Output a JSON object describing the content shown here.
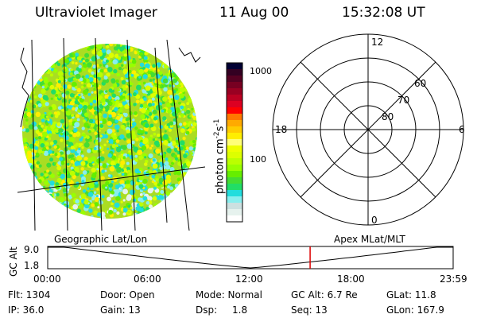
{
  "header": {
    "instrument": "Ultraviolet Imager",
    "date": "11 Aug 00",
    "time": "15:32:08 UT"
  },
  "colorbar": {
    "unit_label": "photon cm",
    "unit_sup1": "-2",
    "unit_mid": "s",
    "unit_sup2": "-1",
    "ticks": [
      "1000",
      "100"
    ],
    "colors": [
      "#000033",
      "#330022",
      "#550022",
      "#770022",
      "#990022",
      "#bb0022",
      "#dd0022",
      "#ff0000",
      "#ff7700",
      "#ffaa00",
      "#ffcc00",
      "#ffee00",
      "#ffff77",
      "#eeff00",
      "#ddff00",
      "#bbff00",
      "#99ff00",
      "#66ee00",
      "#44dd33",
      "#22dd66",
      "#22dddd",
      "#88eeee",
      "#cce0e0",
      "#e6f2ee",
      "#ffffff"
    ]
  },
  "polar": {
    "mlt_labels": {
      "top": "12",
      "right": "6",
      "bottom": "0",
      "left": "18"
    },
    "lat_labels": [
      "80",
      "70",
      "60"
    ]
  },
  "timeline": {
    "left_label": "Geographic Lat/Lon",
    "right_label": "Apex MLat/MLT",
    "y_axis_label": "GC Alt",
    "y_ticks": [
      "9.0",
      "1.8"
    ],
    "x_ticks": [
      "00:00",
      "06:00",
      "12:00",
      "18:00",
      "23:59"
    ],
    "current_time_marker": "15:32",
    "marker_color": "#dd0000"
  },
  "status": {
    "flt": "Flt: 1304",
    "ip": "IP: 36.0",
    "door": "Door: Open",
    "gain": "Gain: 13",
    "mode": "Mode: Normal",
    "dsp_label": "Dsp:",
    "dsp_value": "1.8",
    "gc_alt": "GC Alt: 6.7 Re",
    "seq": "Seq: 13",
    "glat": "GLat:  11.8",
    "glon": "GLon: 167.9"
  }
}
